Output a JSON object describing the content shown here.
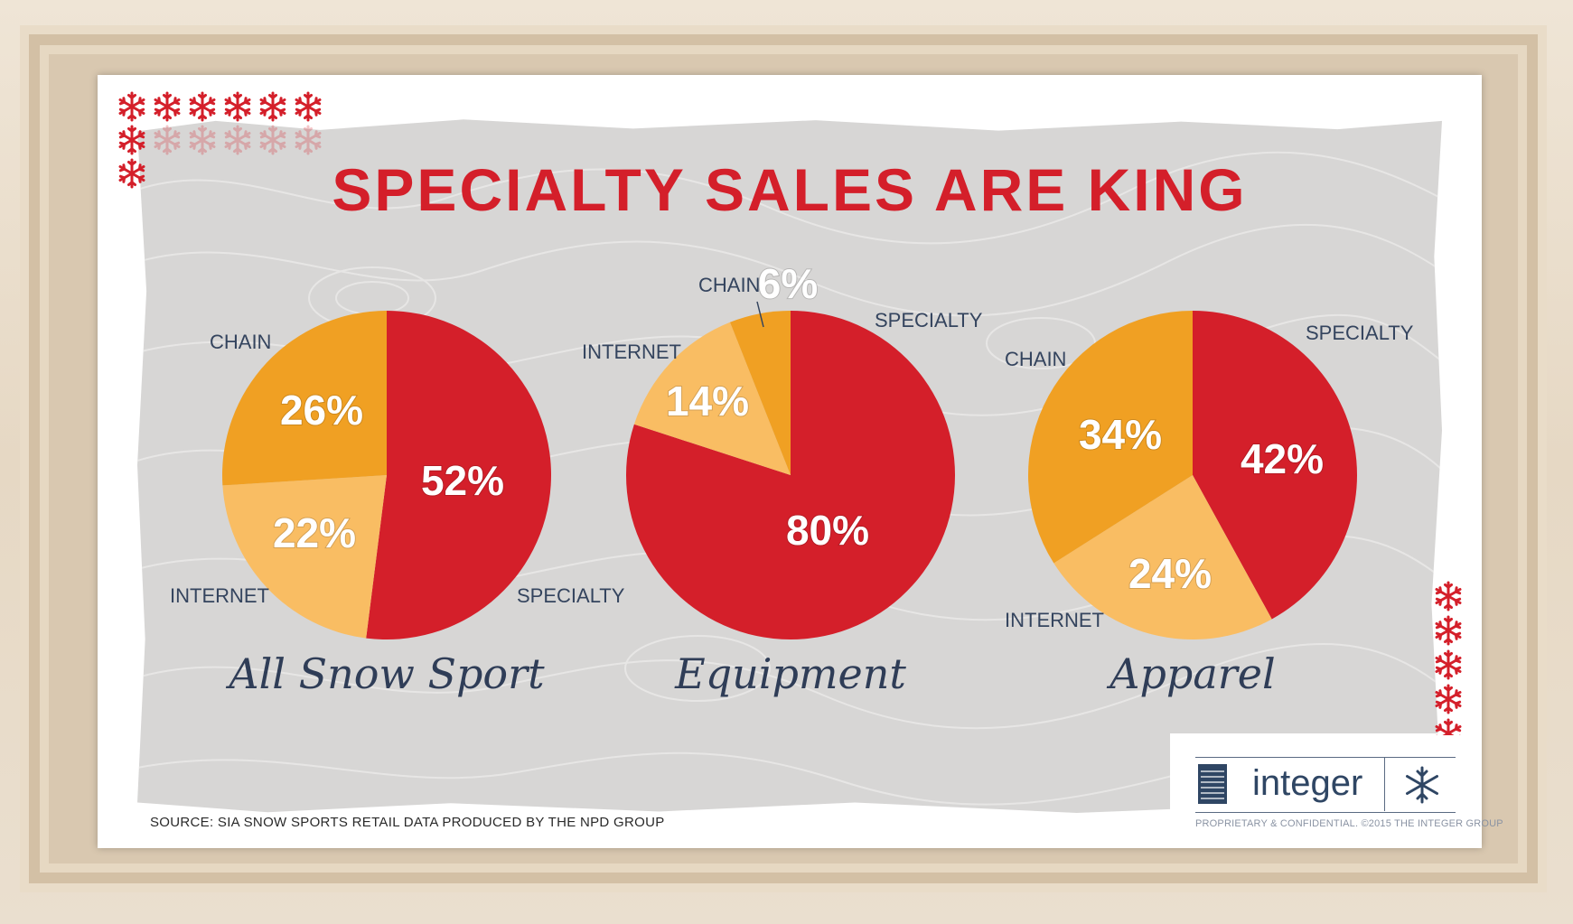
{
  "title": "SPECIALTY SALES ARE KING",
  "source": "SOURCE: SIA SNOW SPORTS RETAIL DATA PRODUCED BY THE NPD GROUP",
  "brand": {
    "name": "integer",
    "legal": "PROPRIETARY & CONFIDENTIAL. ©2015 THE INTEGER GROUP",
    "logo_icon": "integer-logo-mark",
    "snowflake_icon": "snowflake-icon"
  },
  "colors": {
    "specialty": "#d41f2a",
    "chain": "#f0a023",
    "internet": "#f9bd63",
    "label": "#34445e",
    "title": "#d41f2a"
  },
  "chart_data": [
    {
      "type": "pie",
      "title": "All Snow Sport",
      "slices": [
        {
          "label": "SPECIALTY",
          "value": 52,
          "display": "52%"
        },
        {
          "label": "INTERNET",
          "value": 22,
          "display": "22%"
        },
        {
          "label": "CHAIN",
          "value": 26,
          "display": "26%"
        }
      ]
    },
    {
      "type": "pie",
      "title": "Equipment",
      "slices": [
        {
          "label": "SPECIALTY",
          "value": 80,
          "display": "80%"
        },
        {
          "label": "INTERNET",
          "value": 14,
          "display": "14%"
        },
        {
          "label": "CHAIN",
          "value": 6,
          "display": "6%"
        }
      ]
    },
    {
      "type": "pie",
      "title": "Apparel",
      "slices": [
        {
          "label": "SPECIALTY",
          "value": 42,
          "display": "42%"
        },
        {
          "label": "INTERNET",
          "value": 24,
          "display": "24%"
        },
        {
          "label": "CHAIN",
          "value": 34,
          "display": "34%"
        }
      ]
    }
  ]
}
